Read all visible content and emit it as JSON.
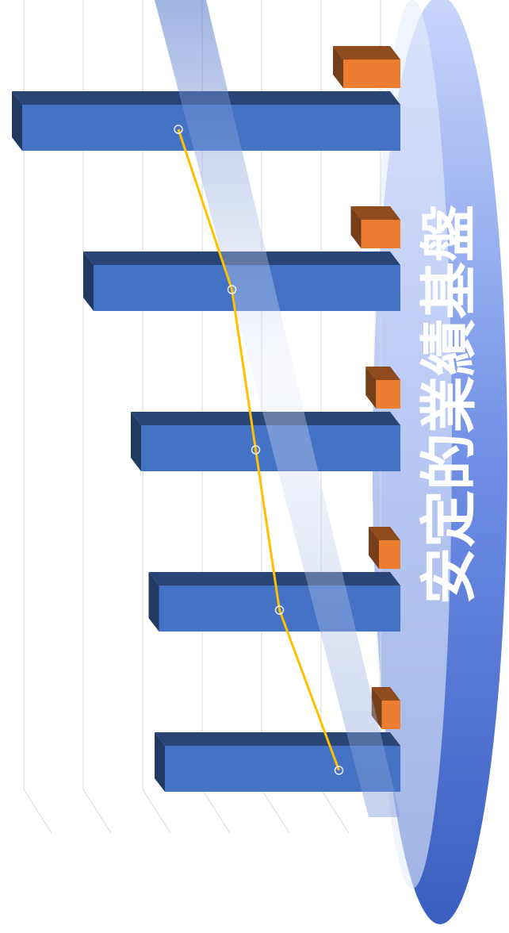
{
  "chart_data": {
    "type": "bar",
    "title": "安定的業績基盤",
    "categories": [
      null,
      null,
      null,
      null,
      null
    ],
    "series": [
      {
        "color": "#4472c4",
        "values": [
          3.8,
          3.9,
          4.2,
          5.0,
          6.2
        ]
      },
      {
        "color": "#ed7d31",
        "values": [
          0.15,
          0.2,
          0.25,
          0.5,
          0.8
        ]
      },
      {
        "type": "line",
        "color": "#ffc000",
        "values": [
          0.7,
          1.7,
          2.1,
          2.5,
          3.4
        ]
      }
    ],
    "ylim": [
      0,
      6.4
    ],
    "yticks": [
      0,
      1,
      2,
      3,
      4,
      5,
      6
    ],
    "grid": true
  }
}
